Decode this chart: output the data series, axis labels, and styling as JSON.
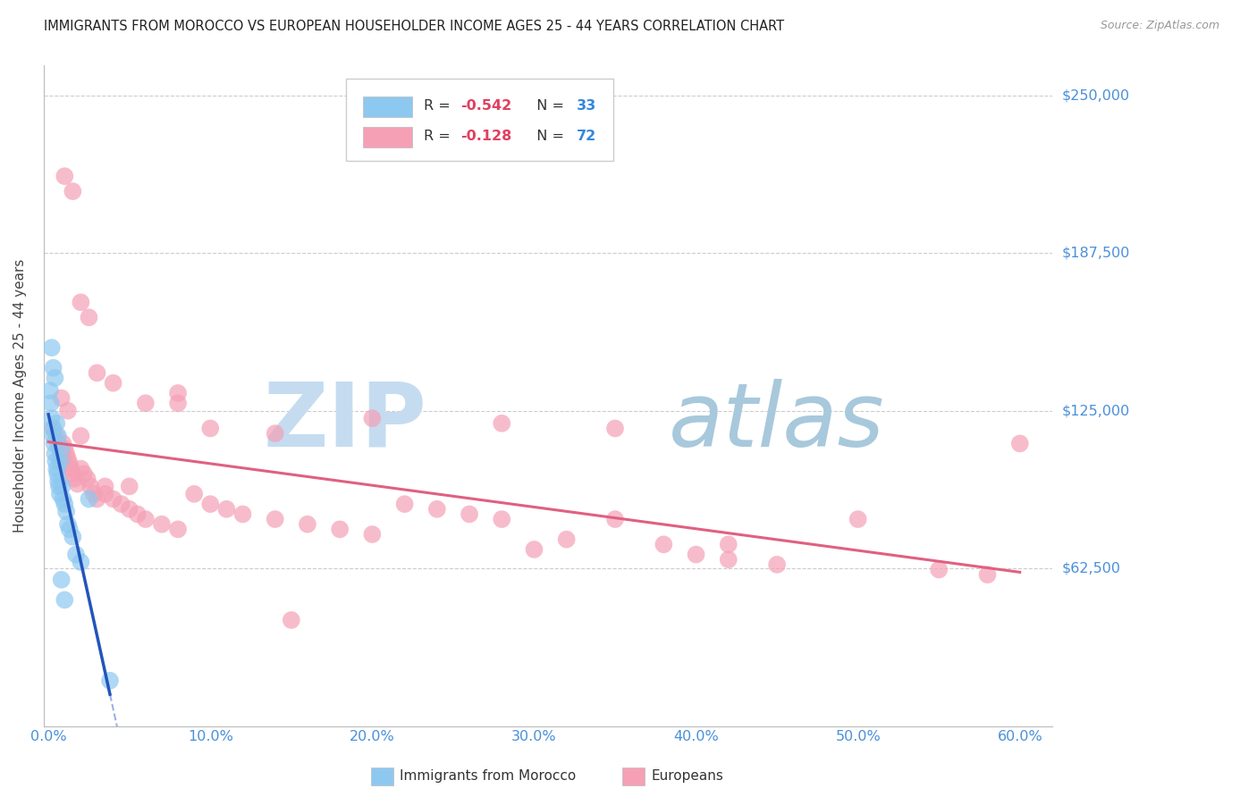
{
  "title": "IMMIGRANTS FROM MOROCCO VS EUROPEAN HOUSEHOLDER INCOME AGES 25 - 44 YEARS CORRELATION CHART",
  "source": "Source: ZipAtlas.com",
  "ylabel": "Householder Income Ages 25 - 44 years",
  "xlabel_ticks": [
    "0.0%",
    "10.0%",
    "20.0%",
    "30.0%",
    "40.0%",
    "50.0%",
    "60.0%"
  ],
  "xlabel_vals": [
    0,
    10,
    20,
    30,
    40,
    50,
    60
  ],
  "yticks": [
    0,
    62500,
    125000,
    187500,
    250000
  ],
  "ytick_labels": [
    "",
    "$62,500",
    "$125,000",
    "$187,500",
    "$250,000"
  ],
  "xlim": [
    -0.3,
    62
  ],
  "ylim": [
    0,
    262000
  ],
  "legend_blue_R": "-0.542",
  "legend_blue_N": "33",
  "legend_pink_R": "-0.128",
  "legend_pink_N": "72",
  "blue_color": "#8DC8F0",
  "pink_color": "#F5A0B5",
  "blue_line_color": "#2255BB",
  "pink_line_color": "#E06080",
  "watermark_zip_color": "#C5DCF0",
  "watermark_atlas_color": "#A8C8DC",
  "blue_scatter_x": [
    0.1,
    0.15,
    0.2,
    0.25,
    0.3,
    0.35,
    0.4,
    0.45,
    0.5,
    0.55,
    0.6,
    0.65,
    0.7,
    0.75,
    0.8,
    0.85,
    0.9,
    1.0,
    1.1,
    1.2,
    1.3,
    1.5,
    1.7,
    2.0,
    2.5,
    0.2,
    0.3,
    0.4,
    0.5,
    0.6,
    3.8,
    0.8,
    1.0
  ],
  "blue_scatter_y": [
    133000,
    128000,
    122000,
    118000,
    115000,
    112000,
    108000,
    105000,
    102000,
    100000,
    97000,
    95000,
    92000,
    105000,
    110000,
    95000,
    90000,
    88000,
    85000,
    80000,
    78000,
    75000,
    68000,
    65000,
    90000,
    150000,
    142000,
    138000,
    120000,
    115000,
    18000,
    58000,
    50000
  ],
  "pink_scatter_x": [
    0.3,
    0.5,
    0.6,
    0.7,
    0.8,
    0.9,
    1.0,
    1.1,
    1.2,
    1.3,
    1.4,
    1.5,
    1.6,
    1.8,
    2.0,
    2.2,
    2.4,
    2.6,
    2.8,
    3.0,
    3.5,
    4.0,
    4.5,
    5.0,
    5.5,
    6.0,
    7.0,
    8.0,
    9.0,
    10.0,
    11.0,
    12.0,
    14.0,
    16.0,
    18.0,
    20.0,
    22.0,
    24.0,
    26.0,
    28.0,
    30.0,
    32.0,
    35.0,
    38.0,
    40.0,
    42.0,
    45.0,
    50.0,
    55.0,
    58.0,
    60.0,
    1.0,
    1.5,
    2.0,
    2.5,
    3.0,
    4.0,
    6.0,
    8.0,
    10.0,
    14.0,
    20.0,
    28.0,
    35.0,
    42.0,
    0.8,
    1.2,
    2.0,
    3.5,
    5.0,
    8.0,
    15.0
  ],
  "pink_scatter_y": [
    118000,
    115000,
    112000,
    110000,
    108000,
    112000,
    110000,
    108000,
    106000,
    104000,
    102000,
    100000,
    98000,
    96000,
    102000,
    100000,
    98000,
    95000,
    92000,
    90000,
    92000,
    90000,
    88000,
    86000,
    84000,
    82000,
    80000,
    78000,
    92000,
    88000,
    86000,
    84000,
    82000,
    80000,
    78000,
    76000,
    88000,
    86000,
    84000,
    82000,
    70000,
    74000,
    82000,
    72000,
    68000,
    66000,
    64000,
    82000,
    62000,
    60000,
    112000,
    218000,
    212000,
    168000,
    162000,
    140000,
    136000,
    128000,
    132000,
    118000,
    116000,
    122000,
    120000,
    118000,
    72000,
    130000,
    125000,
    115000,
    95000,
    95000,
    128000,
    42000
  ]
}
